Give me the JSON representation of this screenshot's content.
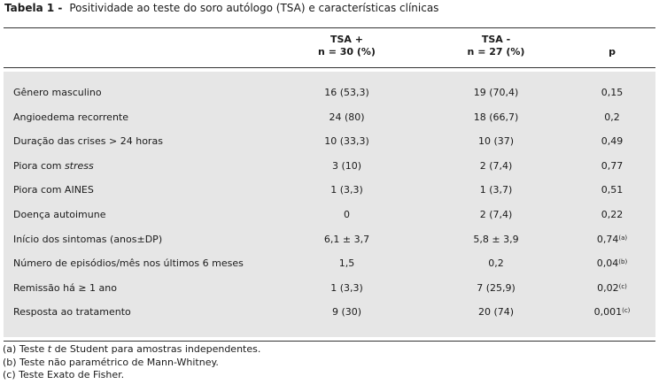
{
  "caption": {
    "label": "Tabela 1 -",
    "text": "Positividade ao teste do soro autólogo (TSA) e características clínicas"
  },
  "header": {
    "col1_line1": "TSA +",
    "col1_line2": "n = 30 (%)",
    "col2_line1": "TSA -",
    "col2_line2": "n = 27 (%)",
    "col3": "p"
  },
  "rows": [
    {
      "label": "Gênero masculino",
      "tsa_pos": "16 (53,3)",
      "tsa_neg": "19 (70,4)",
      "p": "0,15",
      "note": ""
    },
    {
      "label": "Angioedema recorrente",
      "tsa_pos": "24 (80)",
      "tsa_neg": "18 (66,7)",
      "p": "0,2",
      "note": ""
    },
    {
      "label": "Duração das crises > 24 horas",
      "tsa_pos": "10 (33,3)",
      "tsa_neg": "10 (37)",
      "p": "0,49",
      "note": ""
    },
    {
      "label": "Piora com ",
      "label_em": "stress",
      "tsa_pos": "3 (10)",
      "tsa_neg": "2 (7,4)",
      "p": "0,77",
      "note": ""
    },
    {
      "label": "Piora com AINES",
      "tsa_pos": "1 (3,3)",
      "tsa_neg": "1 (3,7)",
      "p": "0,51",
      "note": ""
    },
    {
      "label": "Doença autoimune",
      "tsa_pos": "0",
      "tsa_neg": "2 (7,4)",
      "p": "0,22",
      "note": ""
    },
    {
      "label": "Início dos sintomas (anos±DP)",
      "tsa_pos": "6,1 ± 3,7",
      "tsa_neg": "5,8 ± 3,9",
      "p": "0,74",
      "note": "(a)"
    },
    {
      "label": "Número de episódios/mês nos últimos 6 meses",
      "tsa_pos": "1,5",
      "tsa_neg": "0,2",
      "p": "0,04",
      "note": "(b)"
    },
    {
      "label": "Remissão há ≥ 1 ano",
      "tsa_pos": "1 (3,3)",
      "tsa_neg": "7 (25,9)",
      "p": "0,02",
      "note": "(c)"
    },
    {
      "label": "Resposta ao tratamento",
      "tsa_pos": "9 (30)",
      "tsa_neg": "20 (74)",
      "p": "0,001",
      "note": "(c)"
    }
  ],
  "footnotes": {
    "a_prefix": "(a) Teste ",
    "a_em": "t",
    "a_suffix": " de Student para amostras independentes.",
    "b": "(b) Teste não paramétrico de Mann-Whitney.",
    "c": "(c) Teste Exato de Fisher."
  }
}
